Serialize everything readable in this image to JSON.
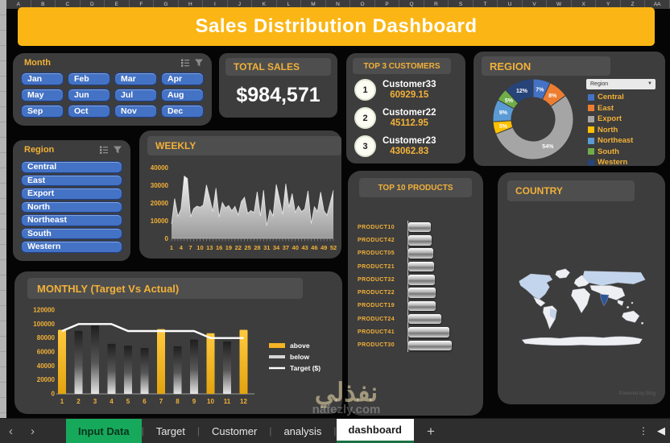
{
  "title": "Sales Distribution Dashboard",
  "colors": {
    "banner": "#FBB615",
    "panel": "#3D3D3D",
    "chip": "#4E4E4E",
    "yellow": "#F2B138",
    "slicerBtn": "#4472C4",
    "tabGreen": "#17A95B",
    "tabGreenDark": "#1D7044",
    "mapBase": "#EDEFF3",
    "mapMid": "#C3D5EC",
    "mapHigh": "#2F5597"
  },
  "spreadsheet": {
    "column_headers": [
      "A",
      "B",
      "C",
      "D",
      "E",
      "F",
      "G",
      "H",
      "I",
      "J",
      "K",
      "L",
      "M",
      "N",
      "O",
      "P",
      "Q",
      "R",
      "S",
      "T",
      "U",
      "V",
      "W",
      "X",
      "Y",
      "Z",
      "AA"
    ],
    "sheet_tabs": [
      {
        "label": "Input Data",
        "style": "green"
      },
      {
        "label": "Target",
        "style": "plain"
      },
      {
        "label": "Customer",
        "style": "plain"
      },
      {
        "label": "analysis",
        "style": "plain"
      },
      {
        "label": "dashboard",
        "style": "active"
      }
    ],
    "tab_nav": {
      "prev": "‹",
      "next": "›",
      "add": "+",
      "dots": "⋮",
      "scroll_left": "◀"
    }
  },
  "slicers": {
    "month": {
      "title": "Month",
      "items": [
        "Jan",
        "Feb",
        "Mar",
        "Apr",
        "May",
        "Jun",
        "Jul",
        "Aug",
        "Sep",
        "Oct",
        "Nov",
        "Dec"
      ]
    },
    "region": {
      "title": "Region",
      "items": [
        "Central",
        "East",
        "Export",
        "North",
        "Northeast",
        "South",
        "Western"
      ]
    }
  },
  "total_sales": {
    "label": "TOTAL SALES",
    "value": "$984,571"
  },
  "top_customers": {
    "title": "TOP 3 CUSTOMERS",
    "items": [
      {
        "rank": "1",
        "name": "Customer33",
        "value": "60929.15"
      },
      {
        "rank": "2",
        "name": "Customer22",
        "value": "45112.95"
      },
      {
        "rank": "3",
        "name": "Customer23",
        "value": "43062.83"
      }
    ]
  },
  "region_panel": {
    "title": "REGION",
    "field_button": "Region"
  },
  "weekly_panel": {
    "title": "WEEKLY"
  },
  "products_panel": {
    "title": "TOP 10 PRODUCTS"
  },
  "country_panel": {
    "title": "COUNTRY",
    "attribution": "Powered by Bing"
  },
  "monthly_panel": {
    "title": "MONTHLY (Target Vs Actual)"
  },
  "watermark": {
    "arabic": "نفذلي",
    "domain": "nafezly.com"
  },
  "chart_data": [
    {
      "id": "region-donut",
      "type": "pie",
      "donut": true,
      "title": "REGION",
      "labels": [
        "Central",
        "East",
        "Export",
        "North",
        "Northeast",
        "South",
        "Western"
      ],
      "values": [
        7,
        8,
        54,
        5,
        9,
        5,
        12
      ],
      "value_format": "percent",
      "colors": [
        "#4472C4",
        "#ED7D31",
        "#A5A5A5",
        "#FFC000",
        "#5B9BD5",
        "#70AD47",
        "#264478"
      ],
      "legend_position": "right"
    },
    {
      "id": "weekly-area",
      "type": "area",
      "title": "WEEKLY",
      "x": [
        1,
        2,
        3,
        4,
        5,
        6,
        7,
        8,
        9,
        10,
        11,
        12,
        13,
        14,
        15,
        16,
        17,
        18,
        19,
        20,
        21,
        22,
        23,
        24,
        25,
        26,
        27,
        28,
        29,
        30,
        31,
        32,
        33,
        34,
        35,
        36,
        37,
        38,
        39,
        40,
        41,
        42,
        43,
        44,
        45,
        46,
        47,
        48,
        49,
        50,
        51,
        52
      ],
      "values": [
        8200,
        22500,
        12500,
        16500,
        35200,
        33800,
        12200,
        16800,
        18200,
        17600,
        18800,
        30200,
        22800,
        15200,
        28400,
        12100,
        20300,
        17200,
        18600,
        15600,
        18100,
        13200,
        20800,
        23200,
        14100,
        15700,
        14600,
        26300,
        12600,
        27200,
        7100,
        16200,
        12700,
        30400,
        22300,
        13600,
        30800,
        17700,
        25300,
        14700,
        18300,
        15100,
        16700,
        26800,
        8300,
        17800,
        15200,
        26200,
        15600,
        13100,
        20200,
        27100
      ],
      "ylim": [
        0,
        40000
      ],
      "y_ticks": [
        0,
        10000,
        20000,
        30000,
        40000
      ],
      "x_ticks": [
        1,
        4,
        7,
        10,
        13,
        16,
        19,
        22,
        25,
        28,
        31,
        34,
        37,
        40,
        43,
        46,
        49,
        52
      ],
      "fill": "silver-gradient"
    },
    {
      "id": "top-products",
      "type": "bar",
      "orientation": "horizontal",
      "title": "TOP 10 PRODUCTS",
      "categories": [
        "PRODUCT10",
        "PRODUCT42",
        "PRODUCT05",
        "PRODUCT21",
        "PRODUCT32",
        "PRODUCT22",
        "PRODUCT19",
        "PRODUCT24",
        "PRODUCT41",
        "PRODUCT30"
      ],
      "values": [
        10500,
        11000,
        11600,
        12000,
        12300,
        12600,
        12900,
        15200,
        19200,
        20300
      ],
      "xlim": [
        0,
        36000
      ],
      "note": "values estimated from bar lengths; no data labels shown"
    },
    {
      "id": "monthly-combo",
      "type": "bar+line",
      "title": "MONTHLY (Target Vs Actual)",
      "categories": [
        "1",
        "2",
        "3",
        "4",
        "5",
        "6",
        "7",
        "8",
        "9",
        "10",
        "11",
        "12"
      ],
      "series": [
        {
          "name": "Actual",
          "type": "bar",
          "values": [
            91700,
            90300,
            98000,
            71700,
            68900,
            65800,
            92700,
            68200,
            77700,
            86800,
            75200,
            91700
          ]
        },
        {
          "name": "Target ($)",
          "type": "line",
          "values": [
            90000,
            100000,
            100000,
            100000,
            90000,
            90000,
            90000,
            90000,
            90000,
            80000,
            80000,
            80000
          ]
        }
      ],
      "legend": [
        "above",
        "below",
        "Target ($)"
      ],
      "above_color": "#F5B325",
      "below_color": "#3A3A3A",
      "line_color": "#FFFFFF",
      "ylim": [
        0,
        120000
      ],
      "y_step": 20000,
      "note": "bar values estimated from pixel heights; bars above target drawn yellow, below target dark"
    }
  ]
}
